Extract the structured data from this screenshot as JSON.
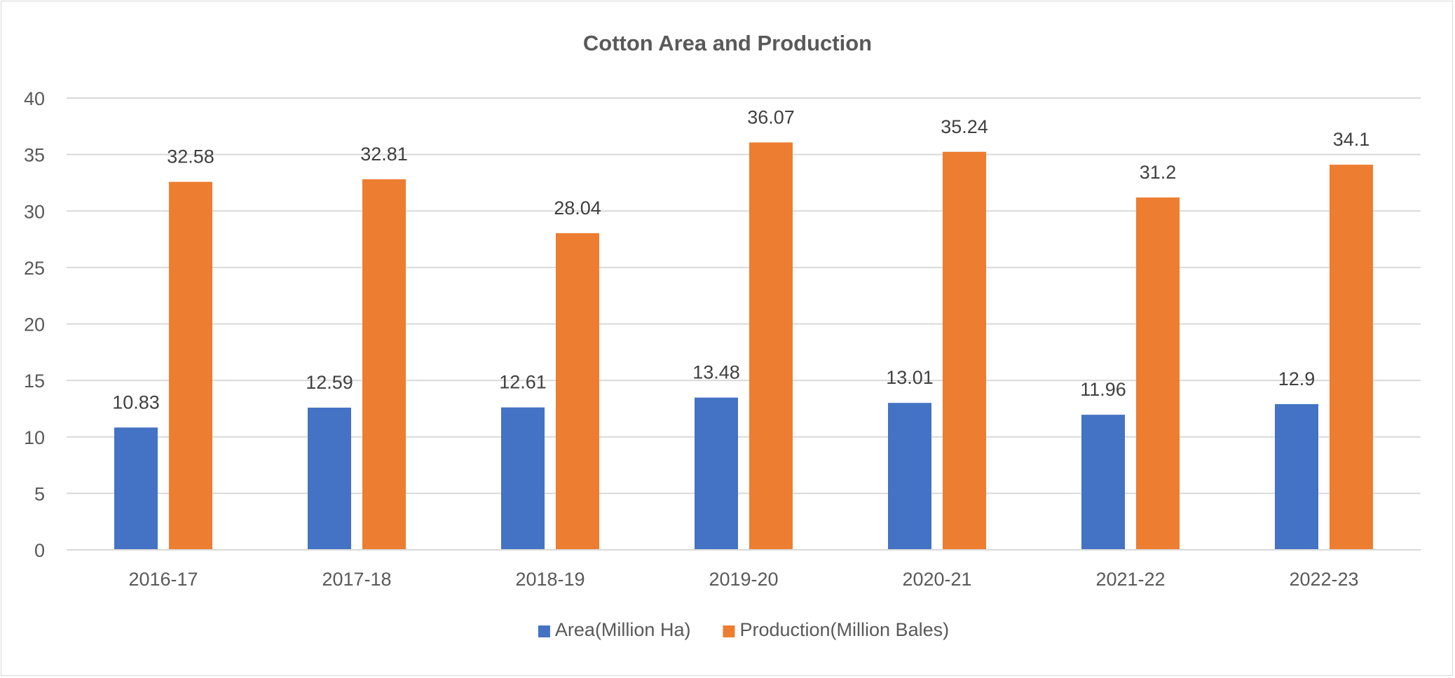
{
  "chart_data": {
    "type": "bar",
    "title": "Cotton Area and Production",
    "categories": [
      "2016-17",
      "2017-18",
      "2018-19",
      "2019-20",
      "2020-21",
      "2021-22",
      "2022-23"
    ],
    "series": [
      {
        "name": "Area(Million Ha)",
        "color": "#4472c4",
        "values": [
          10.83,
          12.59,
          12.61,
          13.48,
          13.01,
          11.96,
          12.9
        ],
        "labels": [
          "10.83",
          "12.59",
          "12.61",
          "13.48",
          "13.01",
          "11.96",
          "12.9"
        ]
      },
      {
        "name": "Production(Million Bales)",
        "color": "#ed7d31",
        "values": [
          32.58,
          32.81,
          28.04,
          36.07,
          35.24,
          31.2,
          34.1
        ],
        "labels": [
          "32.58",
          "32.81",
          "28.04",
          "36.07",
          "35.24",
          "31.2",
          "34.1"
        ]
      }
    ],
    "ylim": [
      0,
      40
    ],
    "yticks": [
      "0",
      "5",
      "10",
      "15",
      "20",
      "25",
      "30",
      "35",
      "40"
    ],
    "xlabel": "",
    "ylabel": "",
    "grid": true,
    "legend": "bottom"
  }
}
